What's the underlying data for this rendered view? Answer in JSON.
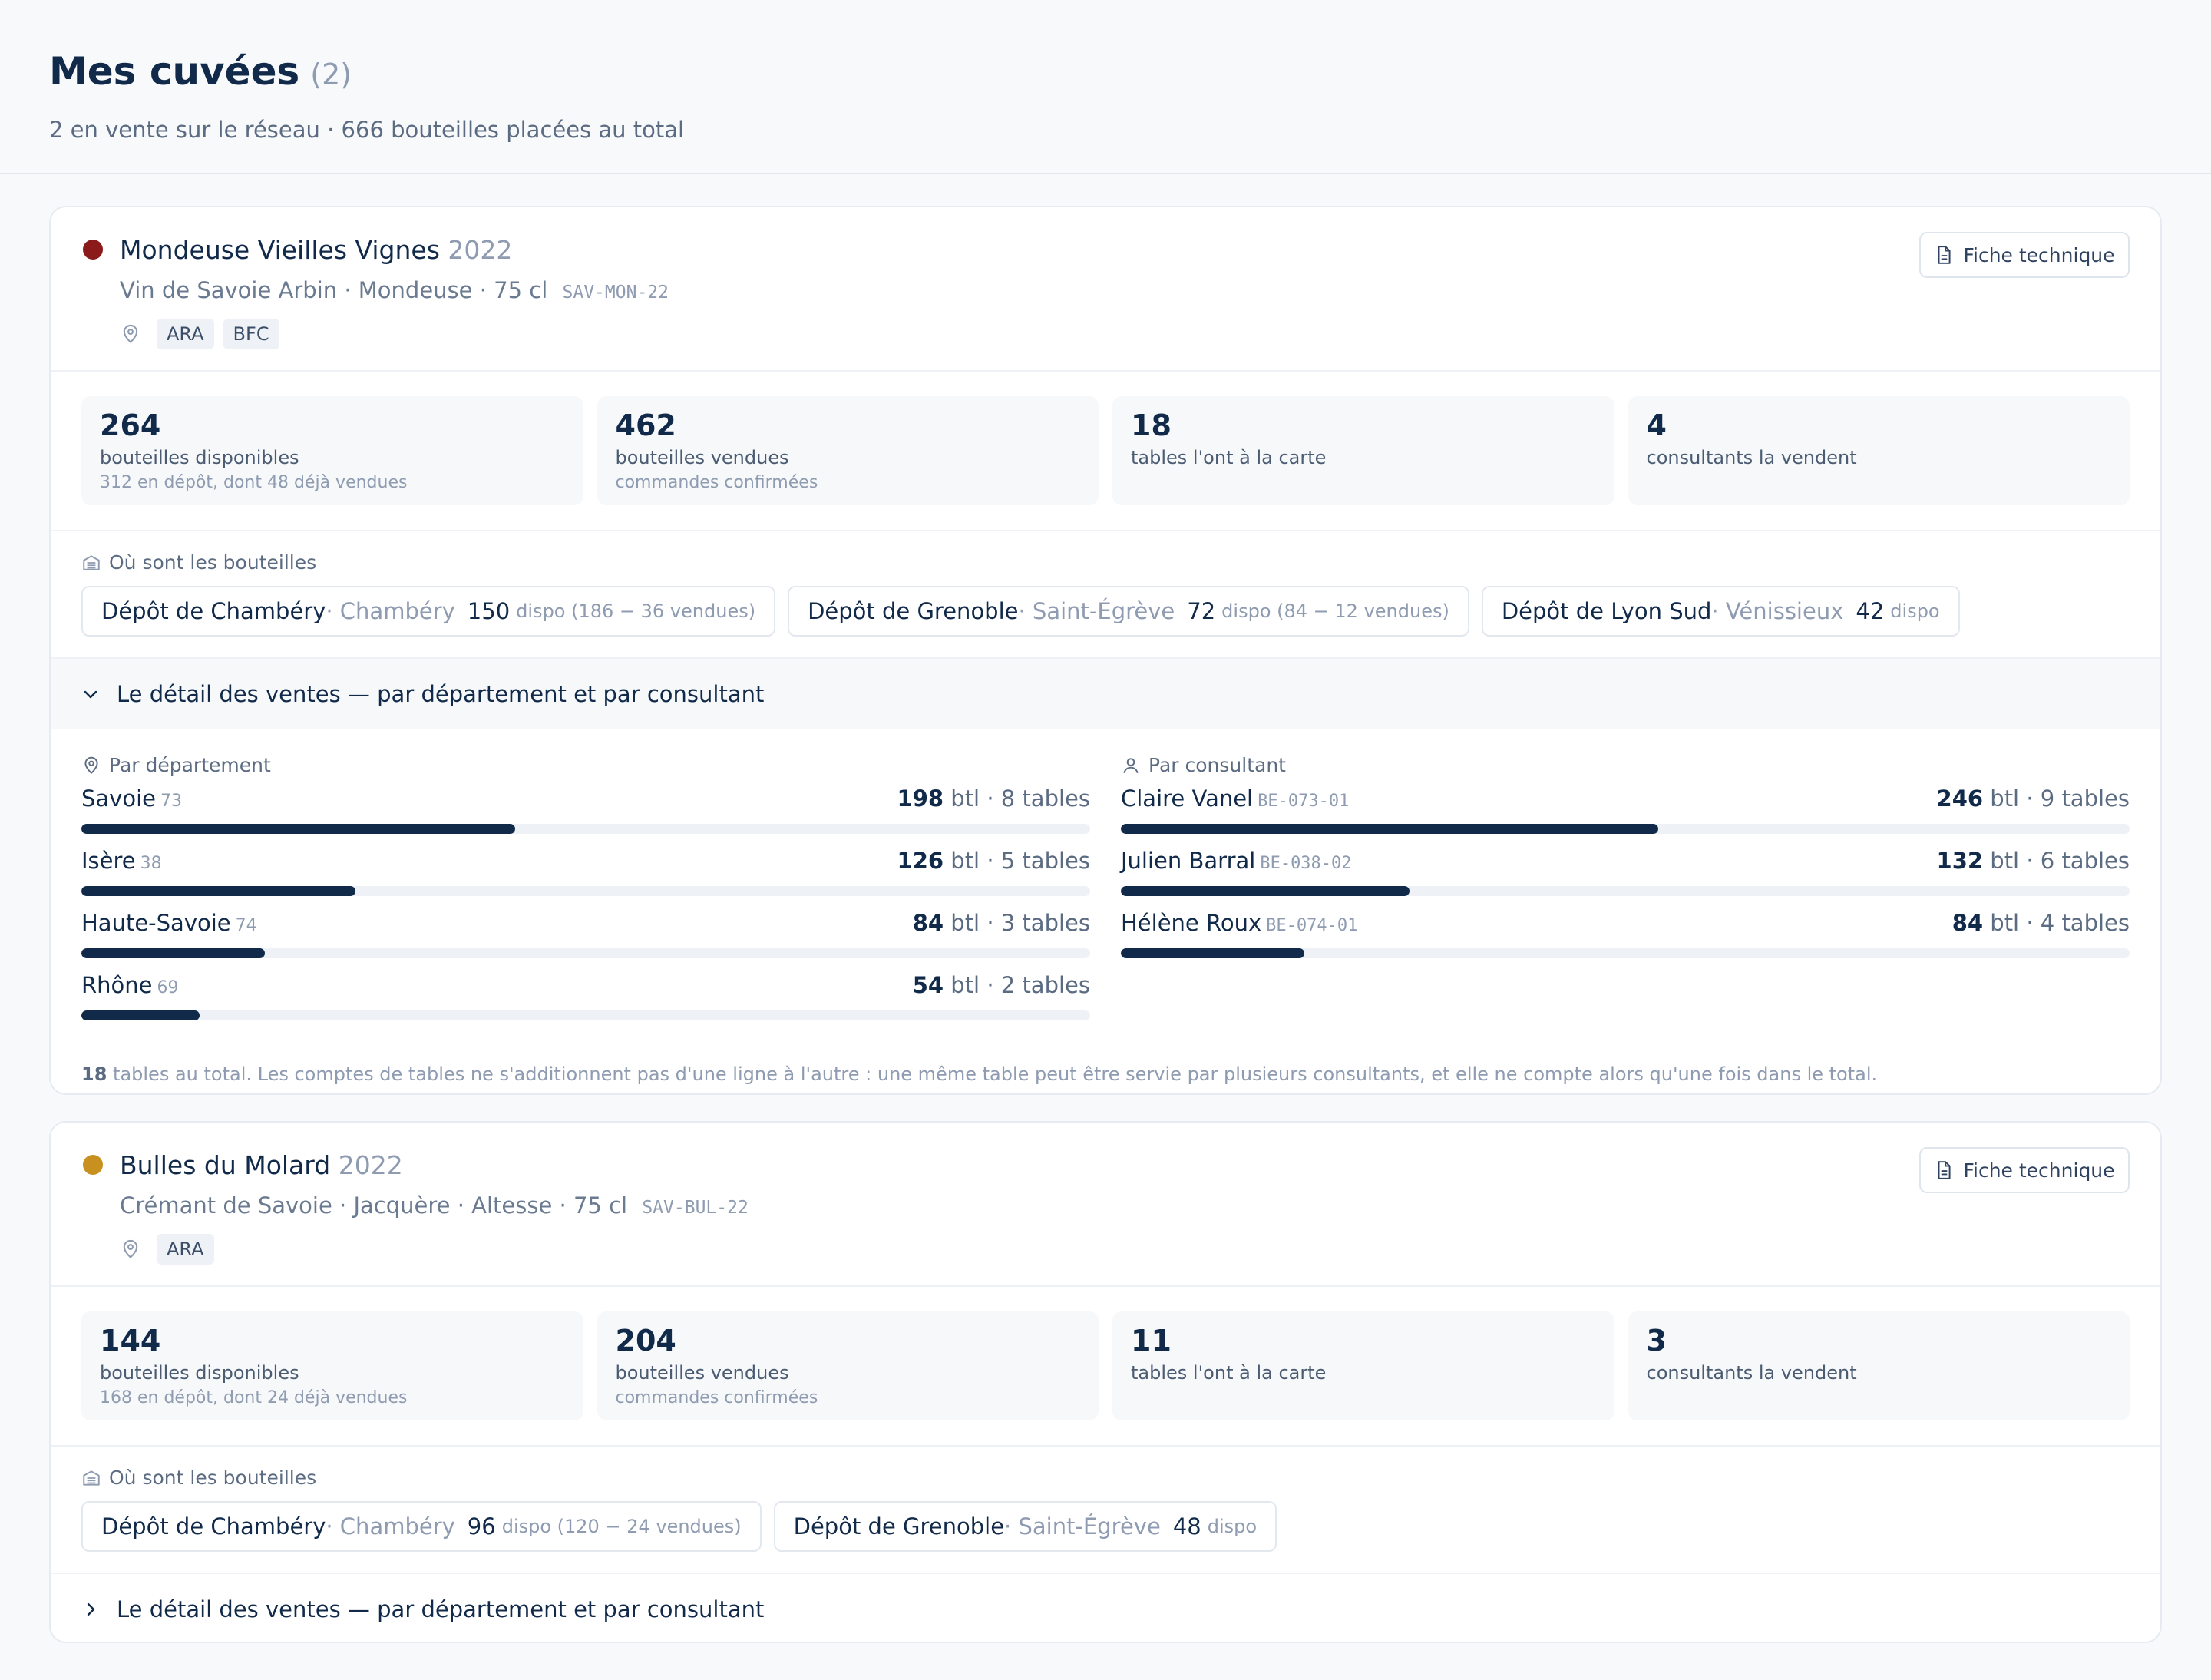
{
  "header": {
    "title": "Mes cuvées",
    "count": "(2)",
    "subtitle": "2 en vente sur le réseau · 666 bouteilles placées au total"
  },
  "wines": [
    {
      "color": "#8b1a1a",
      "name": "Mondeuse Vieilles Vignes",
      "year": "2022",
      "meta": "Vin de Savoie Arbin · Mondeuse · 75 cl",
      "code": "SAV-MON-22",
      "regions": [
        "ARA",
        "BFC"
      ],
      "fiche_label": "Fiche technique",
      "stats": [
        {
          "value": "264",
          "label": "bouteilles disponibles",
          "note": "312 en dépôt, dont 48 déjà vendues"
        },
        {
          "value": "462",
          "label": "bouteilles vendues",
          "note": "commandes confirmées"
        },
        {
          "value": "18",
          "label": "tables l'ont à la carte",
          "note": ""
        },
        {
          "value": "4",
          "label": "consultants la vendent",
          "note": ""
        }
      ],
      "depots_label": "Où sont les bouteilles",
      "depots": [
        {
          "name": "Dépôt de Chambéry",
          "city": " · Chambéry",
          "qty": "150",
          "dispo": "dispo (186 − 36 vendues)"
        },
        {
          "name": "Dépôt de Grenoble",
          "city": " · Saint-Égrève",
          "qty": "72",
          "dispo": "dispo (84 − 12 vendues)"
        },
        {
          "name": "Dépôt de Lyon Sud",
          "city": " · Vénissieux",
          "qty": "42",
          "dispo": "dispo"
        }
      ],
      "detail_label": "Le détail des ventes — par département et par consultant",
      "by_department_label": "Par département",
      "by_consultant_label": "Par consultant",
      "departments": [
        {
          "name": "Savoie",
          "code": "73",
          "btl": "198",
          "tables": " btl · 8 tables",
          "share": 0.43
        },
        {
          "name": "Isère",
          "code": "38",
          "btl": "126",
          "tables": " btl · 5 tables",
          "share": 0.272
        },
        {
          "name": "Haute-Savoie",
          "code": "74",
          "btl": "84",
          "tables": " btl · 3 tables",
          "share": 0.182
        },
        {
          "name": "Rhône",
          "code": "69",
          "btl": "54",
          "tables": " btl · 2 tables",
          "share": 0.117
        }
      ],
      "consultants": [
        {
          "name": "Claire Vanel",
          "code": "BE-073-01",
          "btl": "246",
          "tables": " btl · 9 tables",
          "share": 0.533
        },
        {
          "name": "Julien Barral",
          "code": "BE-038-02",
          "btl": "132",
          "tables": " btl · 6 tables",
          "share": 0.286
        },
        {
          "name": "Hélène Roux",
          "code": "BE-074-01",
          "btl": "84",
          "tables": " btl · 4 tables",
          "share": 0.182
        }
      ],
      "note_count": "18",
      "note_text": " tables au total. Les comptes de tables ne s'additionnent pas d'une ligne à l'autre : une même table peut être servie par plusieurs consultants, et elle ne compte alors qu'une fois dans le total."
    },
    {
      "color": "#c8901e",
      "name": "Bulles du Molard",
      "year": "2022",
      "meta": "Crémant de Savoie · Jacquère · Altesse · 75 cl",
      "code": "SAV-BUL-22",
      "regions": [
        "ARA"
      ],
      "fiche_label": "Fiche technique",
      "stats": [
        {
          "value": "144",
          "label": "bouteilles disponibles",
          "note": "168 en dépôt, dont 24 déjà vendues"
        },
        {
          "value": "204",
          "label": "bouteilles vendues",
          "note": "commandes confirmées"
        },
        {
          "value": "11",
          "label": "tables l'ont à la carte",
          "note": ""
        },
        {
          "value": "3",
          "label": "consultants la vendent",
          "note": ""
        }
      ],
      "depots_label": "Où sont les bouteilles",
      "depots": [
        {
          "name": "Dépôt de Chambéry",
          "city": " · Chambéry",
          "qty": "96",
          "dispo": "dispo (120 − 24 vendues)"
        },
        {
          "name": "Dépôt de Grenoble",
          "city": " · Saint-Égrève",
          "qty": "48",
          "dispo": "dispo"
        }
      ],
      "detail_label": "Le détail des ventes — par département et par consultant"
    }
  ]
}
